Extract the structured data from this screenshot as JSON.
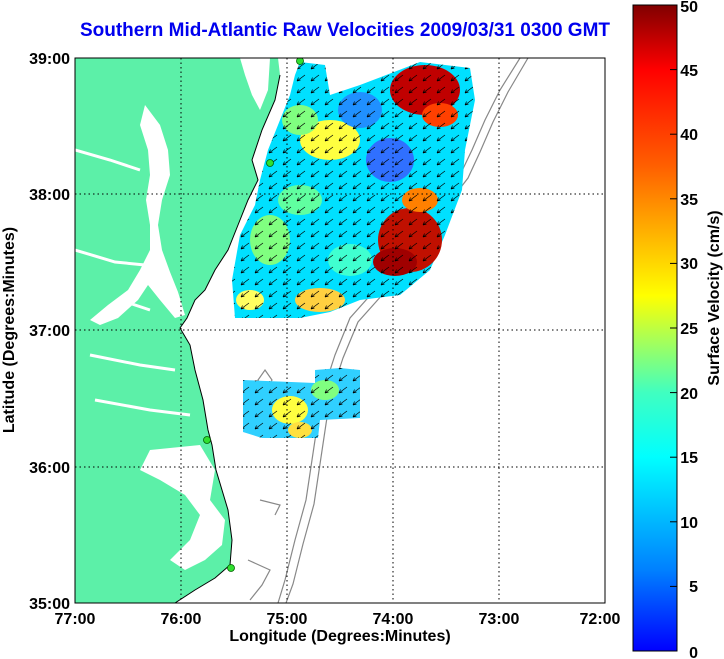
{
  "title": "Southern Mid-Atlantic Raw Velocities 2009/03/31 0300 GMT",
  "map": {
    "xlabel": "Longitude (Degrees:Minutes)",
    "ylabel": "Latitude (Degrees:Minutes)",
    "x_ticks": [
      "77:00",
      "76:00",
      "75:00",
      "74:00",
      "73:00",
      "72:00"
    ],
    "y_ticks": [
      "39:00",
      "38:00",
      "37:00",
      "36:00",
      "35:00"
    ],
    "lon_range": [
      -77,
      -72
    ],
    "lat_range": [
      35,
      39
    ],
    "land_color": "#5cf0a8",
    "grid": "dotted"
  },
  "colorbar": {
    "label": "Surface Velocity (cm/s)",
    "ticks": [
      "0",
      "5",
      "10",
      "15",
      "20",
      "25",
      "30",
      "35",
      "40",
      "45",
      "50"
    ],
    "range": [
      0,
      50
    ]
  }
}
